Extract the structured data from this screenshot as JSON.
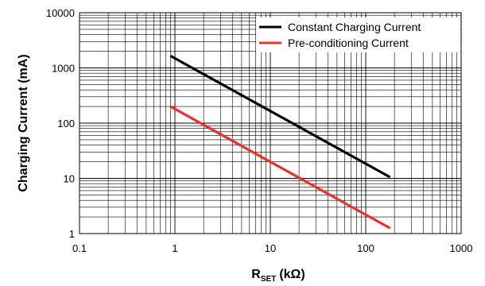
{
  "chart_data": {
    "type": "line",
    "x_scale": "log",
    "y_scale": "log",
    "xlim": [
      0.1,
      1000
    ],
    "ylim": [
      1,
      10000
    ],
    "grid": true,
    "legend_placement": "top-right",
    "xlabel_main": "R",
    "xlabel_sub": "SET",
    "xlabel_unit": "(kΩ)",
    "ylabel": "Charging Current (mA)",
    "x_ticks": [
      "0.1",
      "1",
      "10",
      "100",
      "1000"
    ],
    "y_ticks": [
      "1",
      "10",
      "100",
      "1000",
      "10000"
    ],
    "series": [
      {
        "name": "Constant Charging Current",
        "color": "#000000",
        "x": [
          0.9,
          180
        ],
        "y": [
          1650,
          10.5
        ]
      },
      {
        "name": "Pre-conditioning Current",
        "color": "#e8332d",
        "x": [
          0.9,
          180
        ],
        "y": [
          200,
          1.25
        ]
      }
    ]
  }
}
